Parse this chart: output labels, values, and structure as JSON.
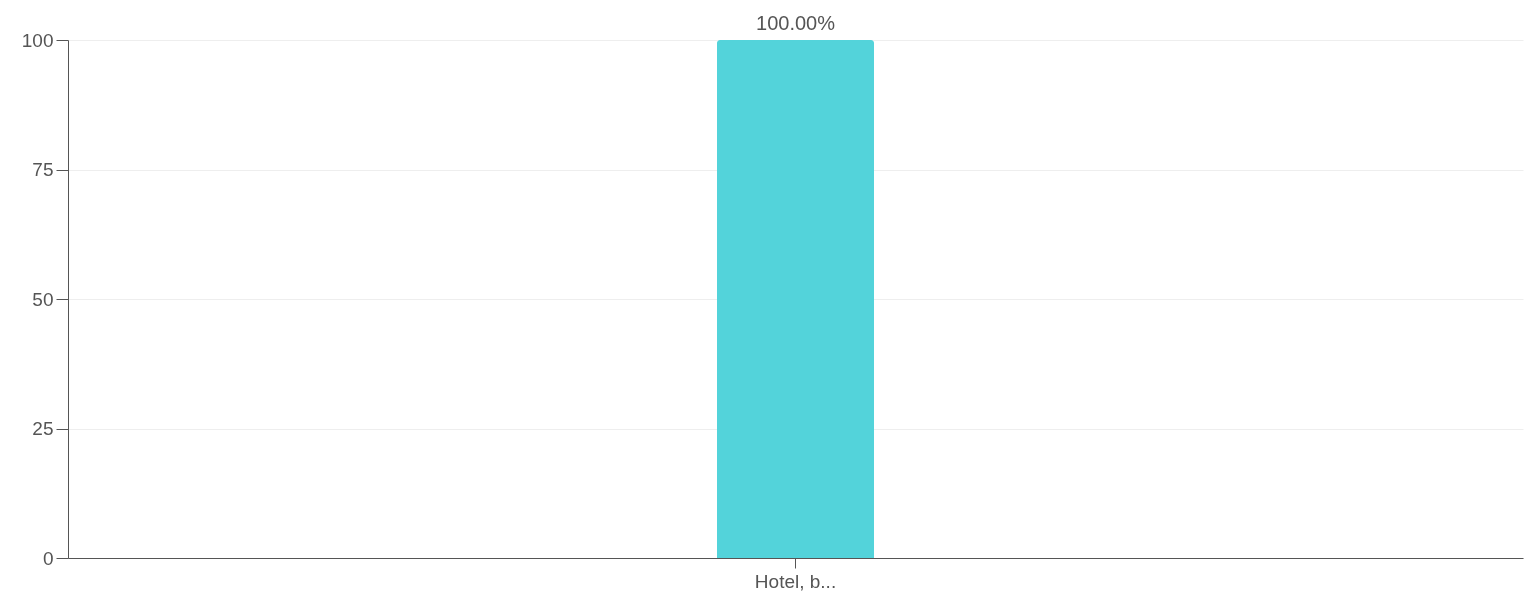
{
  "chart_data": {
    "type": "bar",
    "categories": [
      "Hotel, b..."
    ],
    "values": [
      100
    ],
    "color": "#53d3da",
    "value_labels": [
      "100.00%"
    ],
    "ylim": [
      0,
      100
    ],
    "yticks": [
      0,
      25,
      50,
      75,
      100
    ],
    "grid": "y"
  }
}
